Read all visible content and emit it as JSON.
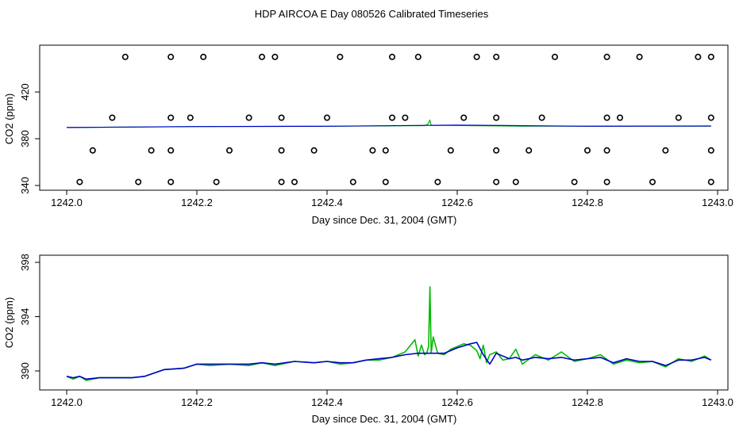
{
  "figure": {
    "title": "HDP AIRCOA E  Day 080526  Calibrated Timeseries"
  },
  "colors": {
    "green": "#00bb00",
    "blue": "#0000cc",
    "axis": "#000000"
  },
  "chart_data": [
    {
      "type": "scatter",
      "title": "",
      "xlabel": "Day since Dec. 31, 2004 (GMT)",
      "ylabel": "CO2 (ppm)",
      "xlim": [
        1242.0,
        1243.0
      ],
      "ylim": [
        340,
        456
      ],
      "xticks": [
        1242.0,
        1242.2,
        1242.4,
        1242.6,
        1242.8,
        1243.0
      ],
      "xtick_labels": [
        "1242.0",
        "1242.2",
        "1242.4",
        "1242.6",
        "1242.8",
        "1243.0"
      ],
      "yticks": [
        340,
        380,
        420
      ],
      "ytick_labels": [
        "340",
        "380",
        "420"
      ],
      "grid": false,
      "points": [
        [
          1242.09,
          450
        ],
        [
          1242.16,
          450
        ],
        [
          1242.21,
          450
        ],
        [
          1242.3,
          450
        ],
        [
          1242.32,
          450
        ],
        [
          1242.42,
          450
        ],
        [
          1242.5,
          450
        ],
        [
          1242.54,
          450
        ],
        [
          1242.63,
          450
        ],
        [
          1242.66,
          450
        ],
        [
          1242.75,
          450
        ],
        [
          1242.83,
          450
        ],
        [
          1242.88,
          450
        ],
        [
          1242.97,
          450
        ],
        [
          1242.99,
          450
        ],
        [
          1242.07,
          398
        ],
        [
          1242.16,
          398
        ],
        [
          1242.19,
          398
        ],
        [
          1242.28,
          398
        ],
        [
          1242.33,
          398
        ],
        [
          1242.4,
          398
        ],
        [
          1242.5,
          398
        ],
        [
          1242.52,
          398
        ],
        [
          1242.61,
          398
        ],
        [
          1242.66,
          398
        ],
        [
          1242.73,
          398
        ],
        [
          1242.83,
          398
        ],
        [
          1242.85,
          398
        ],
        [
          1242.94,
          398
        ],
        [
          1242.99,
          398
        ],
        [
          1242.04,
          370
        ],
        [
          1242.13,
          370
        ],
        [
          1242.16,
          370
        ],
        [
          1242.25,
          370
        ],
        [
          1242.33,
          370
        ],
        [
          1242.38,
          370
        ],
        [
          1242.47,
          370
        ],
        [
          1242.49,
          370
        ],
        [
          1242.59,
          370
        ],
        [
          1242.66,
          370
        ],
        [
          1242.71,
          370
        ],
        [
          1242.8,
          370
        ],
        [
          1242.83,
          370
        ],
        [
          1242.92,
          370
        ],
        [
          1242.99,
          370
        ],
        [
          1242.02,
          343
        ],
        [
          1242.11,
          343
        ],
        [
          1242.16,
          343
        ],
        [
          1242.23,
          343
        ],
        [
          1242.33,
          343
        ],
        [
          1242.35,
          343
        ],
        [
          1242.44,
          343
        ],
        [
          1242.49,
          343
        ],
        [
          1242.57,
          343
        ],
        [
          1242.66,
          343
        ],
        [
          1242.69,
          343
        ],
        [
          1242.78,
          343
        ],
        [
          1242.83,
          343
        ],
        [
          1242.9,
          343
        ],
        [
          1242.99,
          343
        ]
      ],
      "series": [
        {
          "color": "green",
          "x": [
            1242.0,
            1242.2,
            1242.4,
            1242.55,
            1242.555,
            1242.558,
            1242.56,
            1242.565,
            1242.7,
            1242.99
          ],
          "values": [
            389.6,
            390.4,
            390.7,
            391.2,
            392.5,
            396.0,
            391.3,
            391.4,
            390.8,
            390.8
          ]
        },
        {
          "color": "blue",
          "x": [
            1242.0,
            1242.2,
            1242.4,
            1242.6,
            1242.8,
            1242.99
          ],
          "values": [
            389.6,
            390.4,
            390.7,
            391.7,
            390.7,
            390.9
          ]
        }
      ]
    },
    {
      "type": "line",
      "title": "",
      "xlabel": "Day since Dec. 31, 2004 (GMT)",
      "ylabel": "CO2 (ppm)",
      "xlim": [
        1242.0,
        1243.0
      ],
      "ylim": [
        389.2,
        396.5
      ],
      "xticks": [
        1242.0,
        1242.2,
        1242.4,
        1242.6,
        1242.8,
        1243.0
      ],
      "xtick_labels": [
        "1242.0",
        "1242.2",
        "1242.4",
        "1242.6",
        "1242.8",
        "1243.0"
      ],
      "yticks": [
        390,
        394,
        398
      ],
      "ytick_labels": [
        "390",
        "394",
        "398"
      ],
      "grid": false,
      "series": [
        {
          "color": "green",
          "x": [
            1242.0,
            1242.01,
            1242.02,
            1242.03,
            1242.05,
            1242.07,
            1242.1,
            1242.12,
            1242.15,
            1242.18,
            1242.2,
            1242.22,
            1242.25,
            1242.28,
            1242.3,
            1242.32,
            1242.35,
            1242.38,
            1242.4,
            1242.42,
            1242.44,
            1242.46,
            1242.48,
            1242.5,
            1242.52,
            1242.535,
            1242.54,
            1242.545,
            1242.55,
            1242.553,
            1242.556,
            1242.558,
            1242.56,
            1242.563,
            1242.57,
            1242.58,
            1242.59,
            1242.6,
            1242.61,
            1242.62,
            1242.63,
            1242.635,
            1242.64,
            1242.645,
            1242.65,
            1242.66,
            1242.67,
            1242.68,
            1242.69,
            1242.7,
            1242.72,
            1242.74,
            1242.76,
            1242.78,
            1242.8,
            1242.82,
            1242.84,
            1242.86,
            1242.88,
            1242.9,
            1242.92,
            1242.94,
            1242.96,
            1242.98,
            1242.99
          ],
          "values": [
            389.6,
            389.4,
            389.6,
            389.3,
            389.5,
            389.5,
            389.5,
            389.6,
            390.1,
            390.2,
            390.5,
            390.4,
            390.5,
            390.4,
            390.6,
            390.4,
            390.7,
            390.6,
            390.7,
            390.5,
            390.6,
            390.8,
            390.8,
            391.0,
            391.4,
            392.3,
            391.1,
            391.9,
            391.2,
            391.3,
            391.8,
            396.2,
            391.3,
            392.5,
            391.3,
            391.2,
            391.6,
            391.8,
            392.0,
            391.9,
            391.5,
            390.9,
            391.9,
            390.6,
            391.2,
            391.4,
            390.8,
            390.9,
            391.6,
            390.5,
            391.2,
            390.8,
            391.4,
            390.7,
            390.9,
            391.2,
            390.5,
            390.8,
            390.6,
            390.7,
            390.3,
            390.9,
            390.7,
            391.1,
            390.8
          ]
        },
        {
          "color": "blue",
          "x": [
            1242.0,
            1242.01,
            1242.02,
            1242.03,
            1242.05,
            1242.07,
            1242.1,
            1242.12,
            1242.15,
            1242.18,
            1242.2,
            1242.22,
            1242.25,
            1242.28,
            1242.3,
            1242.32,
            1242.35,
            1242.38,
            1242.4,
            1242.42,
            1242.44,
            1242.46,
            1242.48,
            1242.5,
            1242.52,
            1242.54,
            1242.56,
            1242.58,
            1242.6,
            1242.62,
            1242.63,
            1242.64,
            1242.65,
            1242.66,
            1242.67,
            1242.68,
            1242.69,
            1242.7,
            1242.72,
            1242.74,
            1242.76,
            1242.78,
            1242.8,
            1242.82,
            1242.84,
            1242.86,
            1242.88,
            1242.9,
            1242.92,
            1242.94,
            1242.96,
            1242.98,
            1242.99
          ],
          "values": [
            389.6,
            389.5,
            389.6,
            389.4,
            389.5,
            389.5,
            389.5,
            389.6,
            390.1,
            390.2,
            390.5,
            390.5,
            390.5,
            390.5,
            390.6,
            390.5,
            390.7,
            390.6,
            390.7,
            390.6,
            390.6,
            390.8,
            390.9,
            391.0,
            391.2,
            391.3,
            391.3,
            391.3,
            391.7,
            392.0,
            392.1,
            391.2,
            390.5,
            391.3,
            391.1,
            390.9,
            391.0,
            390.8,
            391.0,
            390.9,
            391.0,
            390.8,
            390.9,
            391.0,
            390.6,
            390.9,
            390.7,
            390.7,
            390.4,
            390.8,
            390.8,
            391.0,
            390.8
          ]
        }
      ]
    }
  ]
}
